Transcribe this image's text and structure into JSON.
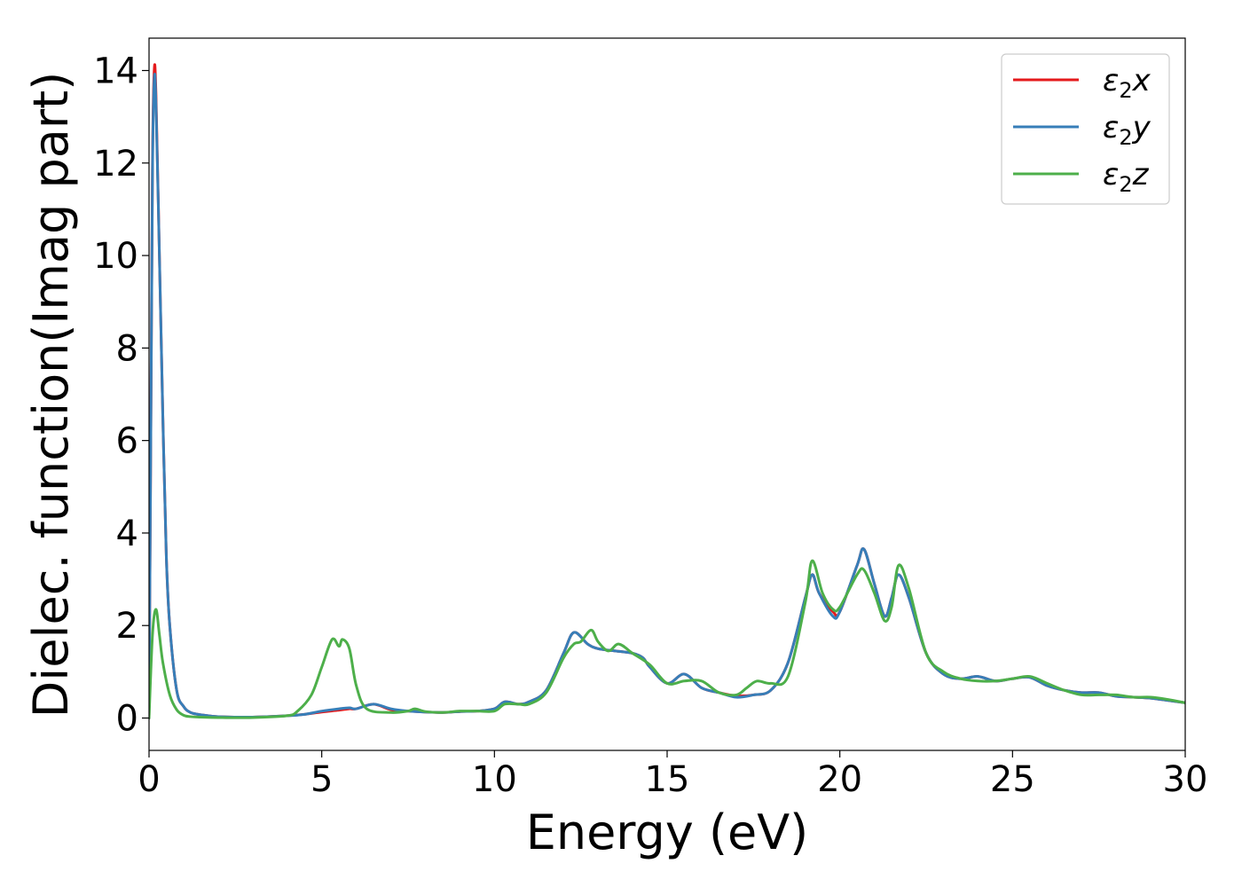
{
  "chart_data": {
    "type": "line",
    "xlabel": "Energy (eV)",
    "ylabel": "Dielec. function(Imag part)",
    "xlim": [
      0,
      30
    ],
    "ylim": [
      -0.7,
      14.7
    ],
    "xticks": [
      0,
      5,
      10,
      15,
      20,
      25,
      30
    ],
    "yticks": [
      0,
      2,
      4,
      6,
      8,
      10,
      12,
      14
    ],
    "grid": false,
    "legend_position": "top-right",
    "series": [
      {
        "name": "ε₂x",
        "legend": {
          "base": "ε",
          "sub": "2",
          "tail": "x"
        },
        "color": "#e41a1c",
        "x": [
          0,
          0.05,
          0.1,
          0.15,
          0.2,
          0.3,
          0.4,
          0.5,
          0.6,
          0.8,
          1.0,
          1.2,
          1.5,
          2.0,
          3.0,
          4.0,
          4.5,
          5.0,
          5.5,
          5.8,
          6.0,
          6.5,
          7.0,
          7.5,
          8.0,
          8.5,
          9.0,
          9.5,
          10.0,
          10.3,
          10.7,
          11.0,
          11.5,
          12.0,
          12.3,
          12.7,
          13.0,
          13.5,
          14.0,
          14.3,
          14.5,
          15.0,
          15.5,
          16.0,
          16.5,
          17.0,
          17.5,
          18.0,
          18.5,
          19.0,
          19.2,
          19.4,
          19.8,
          20.0,
          20.5,
          20.7,
          21.0,
          21.3,
          21.5,
          21.7,
          22.0,
          22.5,
          23.0,
          23.5,
          24.0,
          24.5,
          25.0,
          25.5,
          26.0,
          26.5,
          27.0,
          27.5,
          28.0,
          28.5,
          29.0,
          29.5,
          30.0
        ],
        "values": [
          0,
          6.0,
          12.0,
          14.0,
          13.5,
          10.0,
          6.5,
          3.5,
          2.0,
          0.6,
          0.25,
          0.12,
          0.07,
          0.03,
          0.02,
          0.05,
          0.08,
          0.13,
          0.17,
          0.2,
          0.2,
          0.3,
          0.18,
          0.15,
          0.13,
          0.12,
          0.14,
          0.15,
          0.2,
          0.35,
          0.3,
          0.35,
          0.6,
          1.4,
          1.85,
          1.6,
          1.5,
          1.45,
          1.4,
          1.3,
          1.1,
          0.75,
          0.95,
          0.65,
          0.55,
          0.48,
          0.5,
          0.6,
          1.2,
          2.6,
          3.1,
          2.7,
          2.3,
          2.3,
          3.3,
          3.65,
          2.9,
          2.2,
          2.6,
          3.1,
          2.6,
          1.4,
          0.95,
          0.85,
          0.9,
          0.8,
          0.85,
          0.88,
          0.7,
          0.6,
          0.55,
          0.55,
          0.47,
          0.45,
          0.43,
          0.38,
          0.33
        ]
      },
      {
        "name": "ε₂y",
        "legend": {
          "base": "ε",
          "sub": "2",
          "tail": "y"
        },
        "color": "#377eb8",
        "x": [
          0,
          0.05,
          0.1,
          0.15,
          0.2,
          0.3,
          0.4,
          0.5,
          0.6,
          0.8,
          1.0,
          1.2,
          1.5,
          2.0,
          3.0,
          4.0,
          4.5,
          5.0,
          5.5,
          5.8,
          6.0,
          6.5,
          7.0,
          7.5,
          8.0,
          8.5,
          9.0,
          9.5,
          10.0,
          10.3,
          10.7,
          11.0,
          11.5,
          12.0,
          12.3,
          12.7,
          13.0,
          13.5,
          14.0,
          14.3,
          14.5,
          15.0,
          15.5,
          16.0,
          16.5,
          17.0,
          17.5,
          18.0,
          18.5,
          19.0,
          19.2,
          19.4,
          19.8,
          20.0,
          20.5,
          20.7,
          21.0,
          21.3,
          21.5,
          21.7,
          22.0,
          22.5,
          23.0,
          23.5,
          24.0,
          24.5,
          25.0,
          25.5,
          26.0,
          26.5,
          27.0,
          27.5,
          28.0,
          28.5,
          29.0,
          29.5,
          30.0
        ],
        "values": [
          0,
          6.0,
          11.8,
          13.8,
          13.3,
          10.0,
          6.5,
          3.5,
          2.0,
          0.6,
          0.25,
          0.12,
          0.07,
          0.03,
          0.02,
          0.05,
          0.08,
          0.15,
          0.2,
          0.22,
          0.2,
          0.3,
          0.2,
          0.15,
          0.13,
          0.12,
          0.14,
          0.15,
          0.2,
          0.35,
          0.3,
          0.35,
          0.6,
          1.4,
          1.85,
          1.6,
          1.5,
          1.45,
          1.4,
          1.3,
          1.1,
          0.75,
          0.95,
          0.65,
          0.55,
          0.45,
          0.5,
          0.6,
          1.2,
          2.6,
          3.1,
          2.7,
          2.2,
          2.3,
          3.3,
          3.65,
          2.9,
          2.2,
          2.6,
          3.1,
          2.6,
          1.4,
          0.95,
          0.85,
          0.9,
          0.8,
          0.85,
          0.88,
          0.7,
          0.6,
          0.55,
          0.55,
          0.47,
          0.45,
          0.43,
          0.38,
          0.33
        ]
      },
      {
        "name": "ε₂z",
        "legend": {
          "base": "ε",
          "sub": "2",
          "tail": "z"
        },
        "color": "#4daf4a",
        "x": [
          0,
          0.1,
          0.2,
          0.3,
          0.4,
          0.6,
          0.8,
          1.0,
          1.2,
          1.5,
          2.0,
          3.0,
          4.0,
          4.3,
          4.7,
          5.0,
          5.3,
          5.5,
          5.6,
          5.8,
          6.0,
          6.3,
          7.0,
          7.5,
          7.7,
          8.0,
          8.5,
          9.0,
          9.5,
          10.0,
          10.3,
          10.7,
          11.0,
          11.5,
          12.0,
          12.3,
          12.5,
          12.8,
          13.0,
          13.3,
          13.6,
          14.0,
          14.5,
          15.0,
          15.5,
          16.0,
          16.5,
          17.0,
          17.3,
          17.6,
          18.0,
          18.5,
          19.0,
          19.2,
          19.5,
          19.8,
          20.0,
          20.5,
          20.7,
          21.0,
          21.3,
          21.5,
          21.7,
          22.0,
          22.5,
          23.0,
          23.5,
          24.0,
          24.5,
          25.0,
          25.5,
          26.0,
          26.5,
          27.0,
          27.5,
          28.0,
          28.5,
          29.0,
          29.5,
          30.0
        ],
        "values": [
          0,
          1.8,
          2.35,
          1.8,
          1.2,
          0.5,
          0.18,
          0.06,
          0.03,
          0.02,
          0.01,
          0.01,
          0.05,
          0.15,
          0.5,
          1.1,
          1.7,
          1.55,
          1.7,
          1.5,
          0.7,
          0.2,
          0.12,
          0.15,
          0.2,
          0.14,
          0.12,
          0.15,
          0.15,
          0.15,
          0.3,
          0.3,
          0.3,
          0.55,
          1.3,
          1.6,
          1.65,
          1.9,
          1.65,
          1.45,
          1.6,
          1.4,
          1.15,
          0.75,
          0.8,
          0.8,
          0.55,
          0.5,
          0.65,
          0.8,
          0.75,
          0.9,
          2.5,
          3.4,
          2.7,
          2.35,
          2.4,
          3.1,
          3.2,
          2.7,
          2.1,
          2.4,
          3.3,
          2.8,
          1.4,
          1.0,
          0.85,
          0.8,
          0.8,
          0.85,
          0.9,
          0.75,
          0.6,
          0.5,
          0.5,
          0.5,
          0.45,
          0.45,
          0.4,
          0.33
        ]
      }
    ]
  }
}
